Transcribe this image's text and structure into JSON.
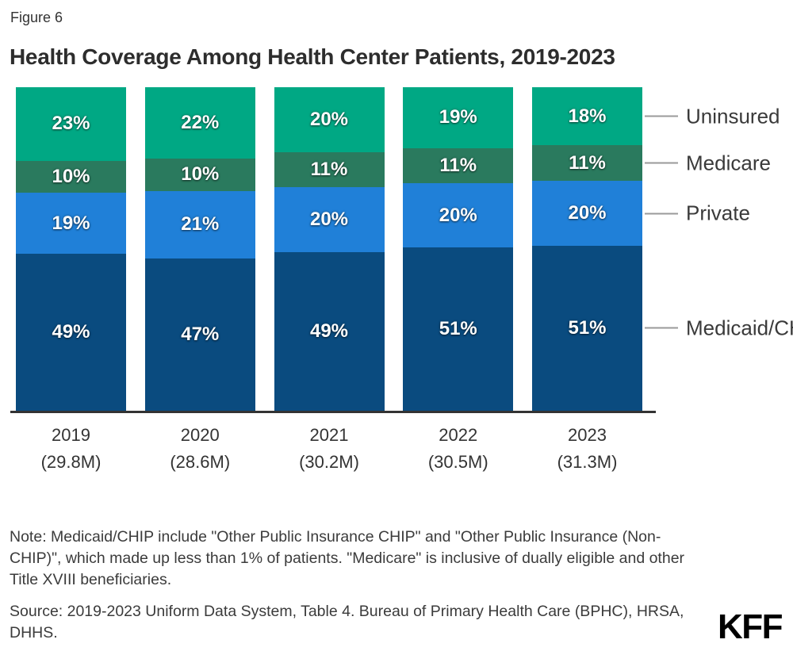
{
  "figure_label": "Figure 6",
  "title": "Health Coverage Among Health Center Patients, 2019-2023",
  "chart_data": {
    "type": "bar",
    "stacked": true,
    "orientation": "vertical",
    "grid": false,
    "legend_position": "right",
    "value_suffix": "%",
    "categories": [
      "2019",
      "2020",
      "2021",
      "2022",
      "2023"
    ],
    "category_sublabels": [
      "(29.8M)",
      "(28.6M)",
      "(30.2M)",
      "(30.5M)",
      "(31.3M)"
    ],
    "series": [
      {
        "name": "Uninsured",
        "color": "#00a884",
        "values": [
          23,
          22,
          20,
          19,
          18
        ]
      },
      {
        "name": "Medicare",
        "color": "#2a7a5e",
        "values": [
          10,
          10,
          11,
          11,
          11
        ]
      },
      {
        "name": "Private",
        "color": "#2080d8",
        "values": [
          19,
          21,
          20,
          20,
          20
        ]
      },
      {
        "name": "Medicaid/CHIP",
        "color": "#0a4b7f",
        "values": [
          49,
          47,
          49,
          51,
          51
        ]
      }
    ]
  },
  "note": "Note: Medicaid/CHIP include \"Other Public Insurance CHIP\" and \"Other Public Insurance (Non-CHIP)\", which made up less than 1% of patients. \"Medicare\" is inclusive of dually eligible and other Title XVIII beneficiaries.",
  "source": "Source: 2019-2023 Uniform Data System, Table 4. Bureau of Primary Health Care (BPHC), HRSA, DHHS.",
  "logo": "KFF"
}
